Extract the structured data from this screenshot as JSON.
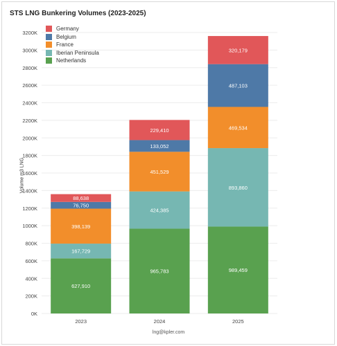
{
  "title": "STS LNG Bunkering Volumes (2023-2025)",
  "footer": "lng@kpler.com",
  "chart_data": {
    "type": "bar",
    "stacked": true,
    "title": "STS LNG Bunkering Volumes (2023-2025)",
    "xlabel": "",
    "ylabel": "Volume m3 LNG",
    "ylim": [
      0,
      3200000
    ],
    "ytick_values": [
      0,
      200000,
      400000,
      600000,
      800000,
      1000000,
      1200000,
      1400000,
      1600000,
      1800000,
      2000000,
      2200000,
      2400000,
      2600000,
      2800000,
      3000000,
      3200000
    ],
    "ytick_labels": [
      "0K",
      "200K",
      "400K",
      "600K",
      "800K",
      "1000K",
      "1200K",
      "1400K",
      "1600K",
      "1800K",
      "2000K",
      "2200K",
      "2400K",
      "2600K",
      "2800K",
      "3000K",
      "3200K"
    ],
    "categories": [
      "2023",
      "2024",
      "2025"
    ],
    "grid": true,
    "legend_position": "top-left",
    "series": [
      {
        "name": "Netherlands",
        "color": "#59a14f",
        "values": [
          627910,
          965783,
          989459
        ],
        "labels": [
          "627,910",
          "965,783",
          "989,459"
        ]
      },
      {
        "name": "Iberian Peninsula",
        "color": "#76b7b2",
        "values": [
          167729,
          424385,
          893860
        ],
        "labels": [
          "167,729",
          "424,385",
          "893,860"
        ]
      },
      {
        "name": "France",
        "color": "#f28e2b",
        "values": [
          398139,
          451529,
          469534
        ],
        "labels": [
          "398,139",
          "451,529",
          "469,534"
        ]
      },
      {
        "name": "Belgium",
        "color": "#4e79a7",
        "values": [
          76750,
          133052,
          487103
        ],
        "labels": [
          "76,750",
          "133,052",
          "487,103"
        ]
      },
      {
        "name": "Germany",
        "color": "#e15759",
        "values": [
          88638,
          229410,
          320179
        ],
        "labels": [
          "88,638",
          "229,410",
          "320,179"
        ]
      }
    ],
    "legend_order": [
      "Germany",
      "Belgium",
      "France",
      "Iberian Peninsula",
      "Netherlands"
    ]
  }
}
